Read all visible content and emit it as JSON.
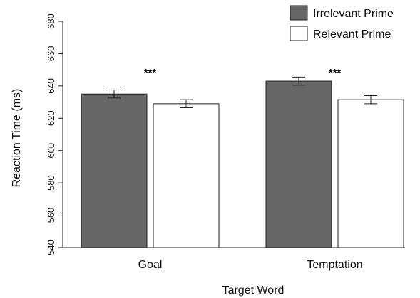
{
  "chart_data": {
    "type": "bar",
    "xlabel": "Target Word",
    "ylabel": "Reaction Time (ms)",
    "ylim": [
      540,
      680
    ],
    "yticks": [
      540,
      560,
      580,
      600,
      620,
      640,
      660,
      680
    ],
    "categories": [
      "Goal",
      "Temptation"
    ],
    "series": [
      {
        "name": "Irrelevant Prime",
        "color": "#666666",
        "values": [
          635,
          643
        ],
        "errors": [
          2.5,
          2.5
        ]
      },
      {
        "name": "Relevant Prime",
        "color": "#ffffff",
        "values": [
          629,
          631.5
        ],
        "errors": [
          2.5,
          2.5
        ]
      }
    ],
    "annotations": [
      "***",
      "***"
    ],
    "legend": "top-right"
  }
}
